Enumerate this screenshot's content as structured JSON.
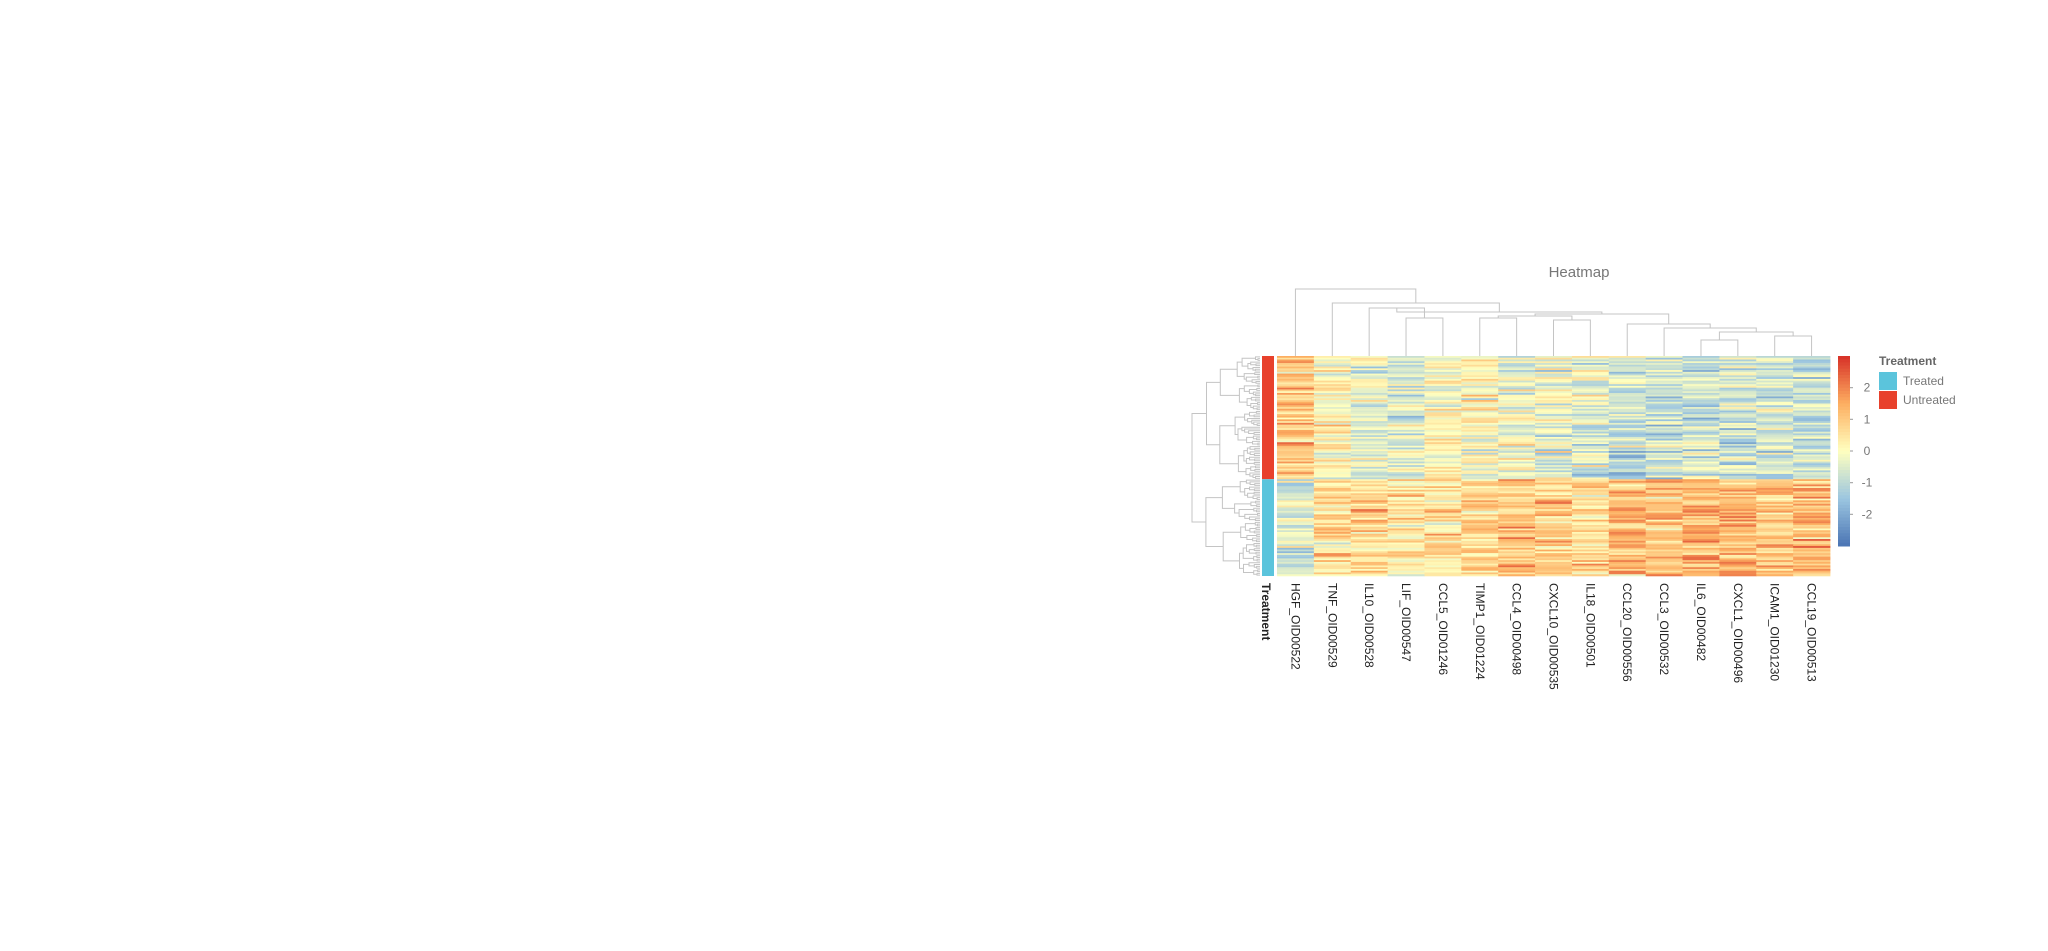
{
  "chart_data": {
    "type": "heatmap",
    "title": "Heatmap",
    "columns": [
      "HGF_OID00522",
      "TNF_OID00529",
      "IL10_OID00528",
      "LIF_OID00547",
      "CCL5_OID01246",
      "TIMP1_OID01224",
      "CCL4_OID00498",
      "CXCL10_OID00535",
      "IL18_OID00501",
      "CCL20_OID00556",
      "CCL3_OID00532",
      "IL6_OID00482",
      "CXCL1_OID00496",
      "ICAM1_OID01230",
      "CCL19_OID00513"
    ],
    "column_means_untreated": [
      0.9,
      0.2,
      -0.3,
      -0.5,
      0.1,
      0.0,
      -0.2,
      -0.3,
      -0.4,
      -0.9,
      -0.8,
      -0.8,
      -0.8,
      -0.7,
      -0.8
    ],
    "column_means_treated": [
      -0.7,
      0.6,
      0.7,
      0.5,
      0.6,
      0.8,
      0.9,
      0.9,
      0.7,
      1.2,
      1.2,
      1.2,
      1.3,
      1.1,
      1.2
    ],
    "row_annotation": {
      "label": "Treatment",
      "groups": [
        {
          "name": "Untreated",
          "color": "#e8412c",
          "n_rows": 70
        },
        {
          "name": "Treated",
          "color": "#5bc4dc",
          "n_rows": 55
        }
      ]
    },
    "color_scale": {
      "min": -3,
      "max": 3,
      "ticks": [
        "2",
        "1",
        "0",
        "-1",
        "-2"
      ],
      "tick_values": [
        2,
        1,
        0,
        -1,
        -2
      ],
      "colors": [
        "#4a74b4",
        "#9cc6e0",
        "#ffffbf",
        "#fdae61",
        "#d73027"
      ]
    },
    "legend": {
      "title": "Treatment",
      "position": "right",
      "items": [
        {
          "label": "Treated",
          "color": "#5bc4dc"
        },
        {
          "label": "Untreated",
          "color": "#e8412c"
        }
      ]
    }
  }
}
